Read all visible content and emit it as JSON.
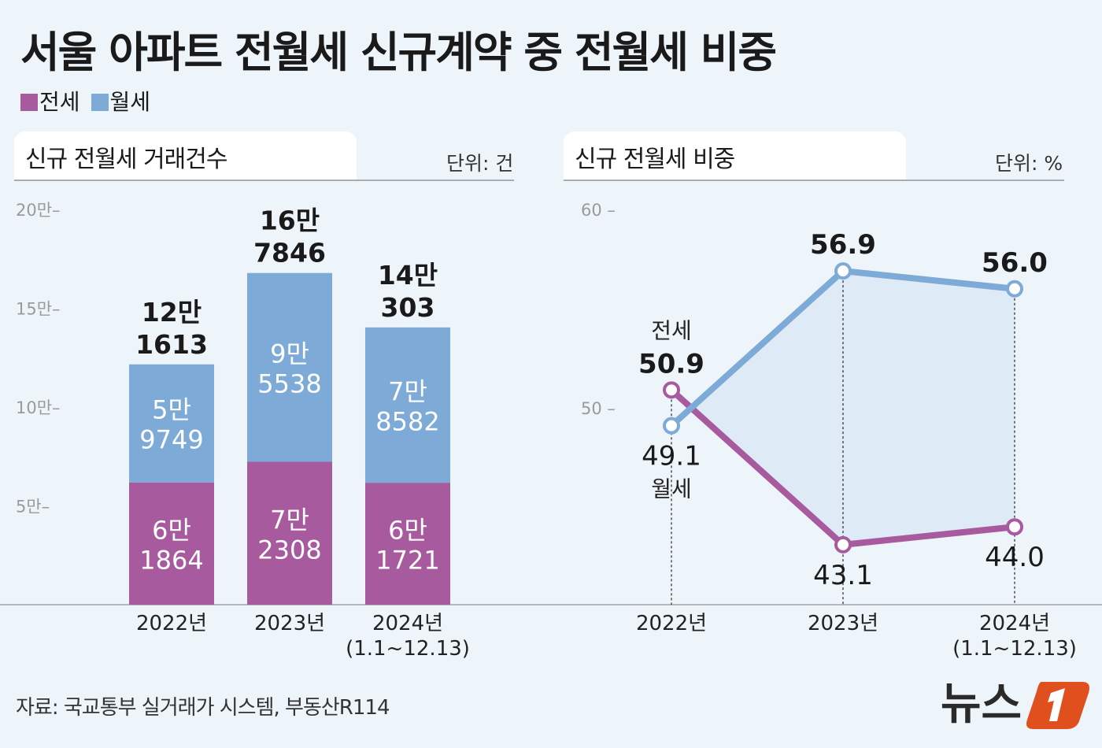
{
  "title": "서울 아파트 전월세 신규계약 중 전월세 비중",
  "legend": [
    {
      "label": "전세",
      "color": "#a85a9e"
    },
    {
      "label": "월세",
      "color": "#7eaad8"
    }
  ],
  "source": "자료: 국교통부 실거래가 시스템, 부동산R114",
  "logo_text": "뉴스1",
  "chart_data": [
    {
      "type": "bar",
      "stacked": true,
      "title": "신규 전월세 거래건수",
      "unit": "단위: 건",
      "categories": [
        "2022년",
        "2023년",
        "2024년"
      ],
      "category_sublabels": [
        "",
        "",
        "(1.1~12.13)"
      ],
      "ylim": [
        0,
        200000
      ],
      "yticks": [
        {
          "value": 50000,
          "label": "5만"
        },
        {
          "value": 100000,
          "label": "10만"
        },
        {
          "value": 150000,
          "label": "15만"
        },
        {
          "value": 200000,
          "label": "20만"
        }
      ],
      "series": [
        {
          "name": "전세",
          "color": "#a85a9e",
          "values": [
            61864,
            72308,
            61721
          ],
          "labels": [
            [
              "6만",
              "1864"
            ],
            [
              "7만",
              "2308"
            ],
            [
              "6만",
              "1721"
            ]
          ]
        },
        {
          "name": "월세",
          "color": "#7eaad8",
          "values": [
            59749,
            95538,
            78582
          ],
          "labels": [
            [
              "5만",
              "9749"
            ],
            [
              "9만",
              "5538"
            ],
            [
              "7만",
              "8582"
            ]
          ]
        }
      ],
      "totals": [
        121613,
        167846,
        140303
      ],
      "total_labels": [
        [
          "12만",
          "1613"
        ],
        [
          "16만",
          "7846"
        ],
        [
          "14만",
          "303"
        ]
      ]
    },
    {
      "type": "line",
      "title": "신규 전월세 비중",
      "unit": "단위: %",
      "categories": [
        "2022년",
        "2023년",
        "2024년"
      ],
      "category_sublabels": [
        "",
        "",
        "(1.1~12.13)"
      ],
      "yticks": [
        {
          "value": 50,
          "label": "50"
        },
        {
          "value": 60,
          "label": "60"
        }
      ],
      "series": [
        {
          "name": "전세",
          "color": "#a85a9e",
          "values": [
            50.9,
            43.1,
            44.0
          ],
          "labels": [
            "50.9",
            "43.1",
            "44.0"
          ]
        },
        {
          "name": "월세",
          "color": "#7eaad8",
          "values": [
            49.1,
            56.9,
            56.0
          ],
          "labels": [
            "49.1",
            "56.9",
            "56.0"
          ]
        }
      ]
    }
  ]
}
